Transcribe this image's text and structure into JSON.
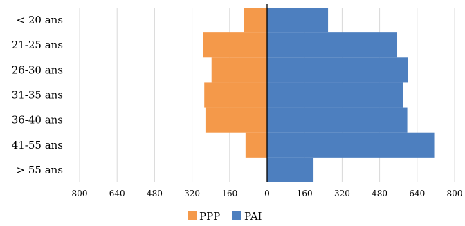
{
  "chart_data": {
    "type": "bar",
    "orientation": "horizontal",
    "layout": "population-pyramid",
    "categories": [
      "< 20 ans",
      "21-25 ans",
      "26-30 ans",
      "31-35 ans",
      "36-40 ans",
      "41-55 ans",
      "> 55 ans"
    ],
    "series": [
      {
        "name": "PPP",
        "side": "left",
        "color": "#f4994a",
        "values": [
          100,
          272,
          237,
          268,
          263,
          92,
          0
        ]
      },
      {
        "name": "PAI",
        "side": "right",
        "color": "#4d7fbf",
        "values": [
          260,
          555,
          602,
          580,
          598,
          713,
          198
        ]
      }
    ],
    "xlim": [
      -800,
      800
    ],
    "xticks": [
      -800,
      -640,
      -480,
      -320,
      -160,
      0,
      160,
      320,
      480,
      640,
      800
    ],
    "xtick_labels": [
      "800",
      "640",
      "480",
      "320",
      "160",
      "0",
      "160",
      "320",
      "480",
      "640",
      "800"
    ],
    "grid": "vertical",
    "legend": "bottom-center",
    "title": "",
    "xlabel": "",
    "ylabel": ""
  }
}
